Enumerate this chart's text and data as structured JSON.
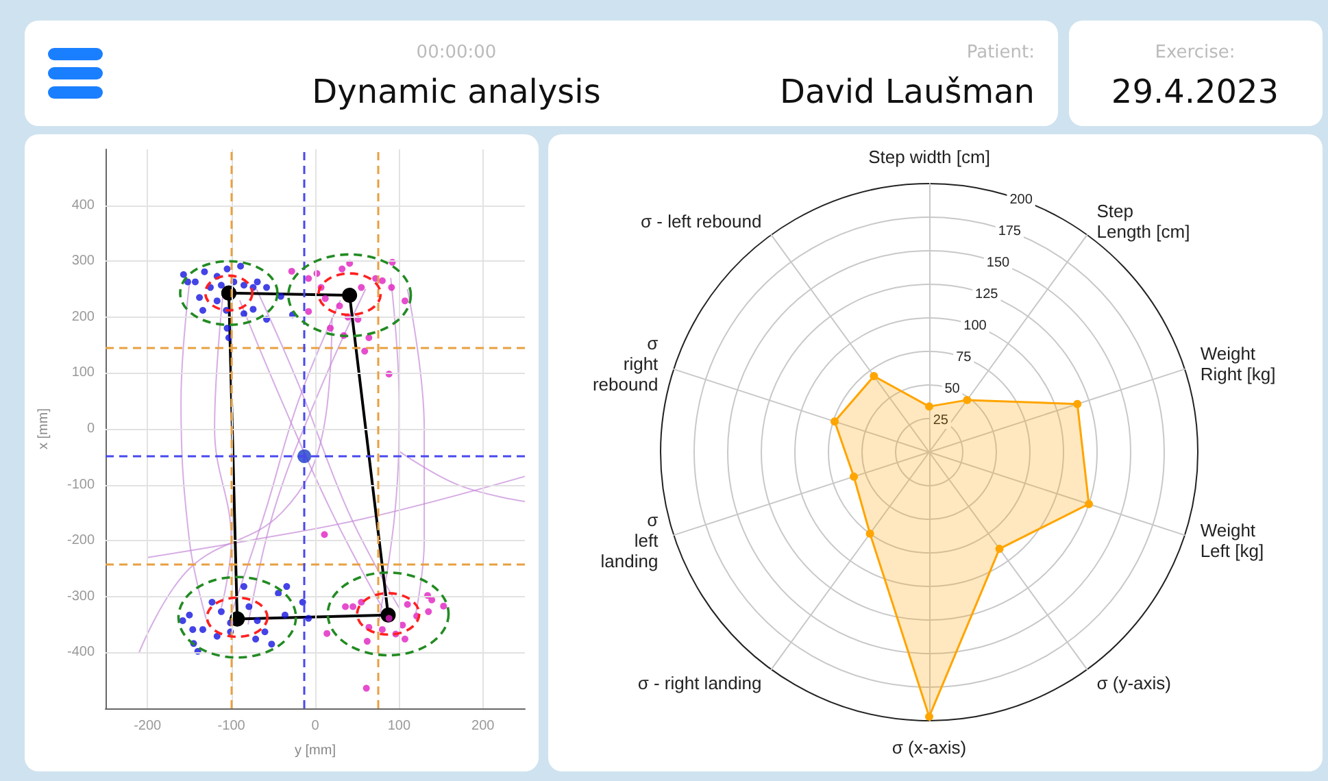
{
  "chart_data": [
    {
      "type": "scatter",
      "title": "Dynamic analysis",
      "annotations": [
        "00:00:00",
        "Patient:",
        "David Laušman",
        "Exercise:",
        "29.4.2023"
      ],
      "xlabel": "y [mm]",
      "ylabel": "x [mm]",
      "xlim": [
        -250,
        250
      ],
      "ylim": [
        -500,
        500
      ],
      "xticks": [
        -200,
        -100,
        0,
        100,
        200
      ],
      "yticks": [
        -400,
        -300,
        -200,
        -100,
        0,
        100,
        200,
        300,
        400
      ],
      "grid": true,
      "ref_lines": [
        {
          "axis": "x",
          "value": -100,
          "color": "#e8a040",
          "line_style": "dashed"
        },
        {
          "axis": "x",
          "value": 75,
          "color": "#e8a040",
          "line_style": "dashed"
        },
        {
          "axis": "y",
          "value": 145,
          "color": "#e8a040",
          "line_style": "dashed"
        },
        {
          "axis": "y",
          "value": -243,
          "color": "#e8a040",
          "line_style": "dashed"
        },
        {
          "axis": "x",
          "value": -13,
          "color": "#4848f0",
          "line_style": "dashed"
        },
        {
          "axis": "y",
          "value": -49,
          "color": "#4848f0",
          "line_style": "dashed"
        }
      ],
      "series": [
        {
          "type": "line",
          "color": "#c48ad8",
          "marker": "none",
          "line_style": "solid",
          "x": [
            -150,
            -160,
            -150,
            -130
          ],
          "values": [
            260,
            50,
            -200,
            -340
          ]
        },
        {
          "type": "line",
          "color": "#c48ad8",
          "marker": "none",
          "line_style": "solid",
          "x": [
            -110,
            -120,
            -100,
            -112
          ],
          "values": [
            240,
            0,
            -200,
            -320
          ]
        },
        {
          "type": "line",
          "color": "#c48ad8",
          "marker": "none",
          "line_style": "solid",
          "x": [
            -90,
            -40,
            20,
            80
          ],
          "values": [
            230,
            50,
            -150,
            -320
          ]
        },
        {
          "type": "line",
          "color": "#c48ad8",
          "marker": "none",
          "line_style": "solid",
          "x": [
            -70,
            -20,
            40,
            100
          ],
          "values": [
            250,
            80,
            -150,
            -320
          ]
        },
        {
          "type": "line",
          "color": "#c48ad8",
          "marker": "none",
          "line_style": "solid",
          "x": [
            30,
            -20,
            -60,
            -100
          ],
          "values": [
            230,
            50,
            -150,
            -330
          ]
        },
        {
          "type": "line",
          "color": "#c48ad8",
          "marker": "none",
          "line_style": "solid",
          "x": [
            60,
            0,
            -50,
            -80
          ],
          "values": [
            250,
            50,
            -150,
            -350
          ]
        },
        {
          "type": "line",
          "color": "#c48ad8",
          "marker": "none",
          "line_style": "solid",
          "x": [
            90,
            100,
            95,
            75
          ],
          "values": [
            270,
            50,
            -150,
            -350
          ]
        },
        {
          "type": "line",
          "color": "#c48ad8",
          "marker": "none",
          "line_style": "solid",
          "x": [
            110,
            130,
            130,
            120
          ],
          "values": [
            250,
            0,
            -200,
            -330
          ]
        },
        {
          "type": "line",
          "color": "#c48ad8",
          "marker": "none",
          "line_style": "solid",
          "x": [
            20,
            10,
            -40,
            -150,
            -210
          ],
          "values": [
            200,
            0,
            -150,
            -250,
            -400
          ]
        },
        {
          "type": "line",
          "color": "#c48ad8",
          "marker": "none",
          "line_style": "solid",
          "x": [
            100,
            170,
            250
          ],
          "values": [
            -40,
            -100,
            -130
          ]
        },
        {
          "type": "line",
          "color": "#c48ad8",
          "marker": "none",
          "line_style": "solid",
          "x": [
            -200,
            -80,
            60,
            250
          ],
          "values": [
            -230,
            -200,
            -160,
            -85
          ]
        },
        {
          "type": "scatter",
          "color": "#1414e0",
          "marker": "circle",
          "x": [
            -157,
            -152,
            -143,
            -132,
            -117,
            -105,
            -89,
            -138,
            -134,
            -125,
            -112,
            -97,
            -85,
            -74,
            -69,
            -58,
            -117,
            -106,
            -85,
            -74,
            -58,
            -105,
            -103,
            -41,
            -27
          ],
          "values": [
            276,
            263,
            263,
            281,
            273,
            286,
            291,
            235,
            212,
            253,
            257,
            263,
            257,
            253,
            263,
            253,
            229,
            212,
            206,
            214,
            196,
            180,
            163,
            237,
            204
          ]
        },
        {
          "type": "scatter",
          "color": "#e020c0",
          "marker": "circle",
          "x": [
            -28,
            -8,
            2,
            7,
            32,
            41,
            12,
            -8,
            18,
            34,
            51,
            55,
            72,
            80,
            92,
            91,
            107,
            64,
            59,
            88,
            39,
            29
          ],
          "values": [
            282,
            269,
            278,
            253,
            286,
            296,
            233,
            210,
            180,
            167,
            196,
            253,
            269,
            265,
            298,
            253,
            229,
            163,
            139,
            98,
            200,
            220
          ]
        },
        {
          "type": "scatter",
          "color": "#1414e0",
          "marker": "circle",
          "x": [
            -158,
            -150,
            -146,
            -134,
            -145,
            -140,
            -123,
            -112,
            -101,
            -85,
            -79,
            -69,
            -60,
            -52,
            -71,
            -44,
            -34,
            -36,
            -117,
            -101,
            -15,
            -8
          ],
          "values": [
            -343,
            -333,
            -359,
            -359,
            -384,
            -398,
            -310,
            -327,
            -347,
            -282,
            -318,
            -343,
            -363,
            -385,
            -376,
            -294,
            -282,
            -333,
            -371,
            -363,
            -310,
            -339
          ]
        },
        {
          "type": "scatter",
          "color": "#e020c0",
          "marker": "circle",
          "x": [
            14,
            36,
            45,
            55,
            64,
            62,
            80,
            88,
            96,
            104,
            107,
            110,
            121,
            134,
            139,
            135,
            153,
            61,
            11
          ],
          "values": [
            -366,
            -318,
            -318,
            -310,
            -355,
            -380,
            -359,
            -339,
            -367,
            -351,
            -376,
            -314,
            -335,
            -298,
            -306,
            -327,
            -317,
            -464,
            -189
          ]
        },
        {
          "type": "line",
          "color": "#000000",
          "marker": "circle",
          "line_style": "solid",
          "x": [
            -103,
            41,
            87,
            -93
          ],
          "values": [
            243,
            239,
            -333,
            -340
          ]
        },
        {
          "type": "line",
          "color": "#000000",
          "marker": "circle",
          "line_style": "solid",
          "x": [
            -93,
            -103
          ],
          "values": [
            -340,
            243
          ]
        },
        {
          "type": "scatter",
          "color": "#1a3cc8",
          "marker": "circle",
          "x": [
            -13
          ],
          "values": [
            -49
          ]
        }
      ]
    },
    {
      "type": "radar",
      "categories": [
        "Step width [cm]",
        "Step\nLength [cm]",
        "Weight\nRight [kg]",
        "Weight\nLeft [kg]",
        "σ (y-axis)",
        "σ (x-axis)",
        "σ - right landing",
        "σ\nleft\nlanding",
        "σ\nright\nrebound",
        "σ - left rebound"
      ],
      "ylim": [
        0,
        200
      ],
      "yticks": [
        25,
        50,
        75,
        100,
        125,
        150,
        175,
        200
      ],
      "grid": true,
      "marker": "circle",
      "series": [
        {
          "color": "#ffa500",
          "values": [
            34,
            48,
            116,
            125,
            89,
            197,
            75,
            59,
            74,
            70
          ]
        }
      ]
    }
  ]
}
